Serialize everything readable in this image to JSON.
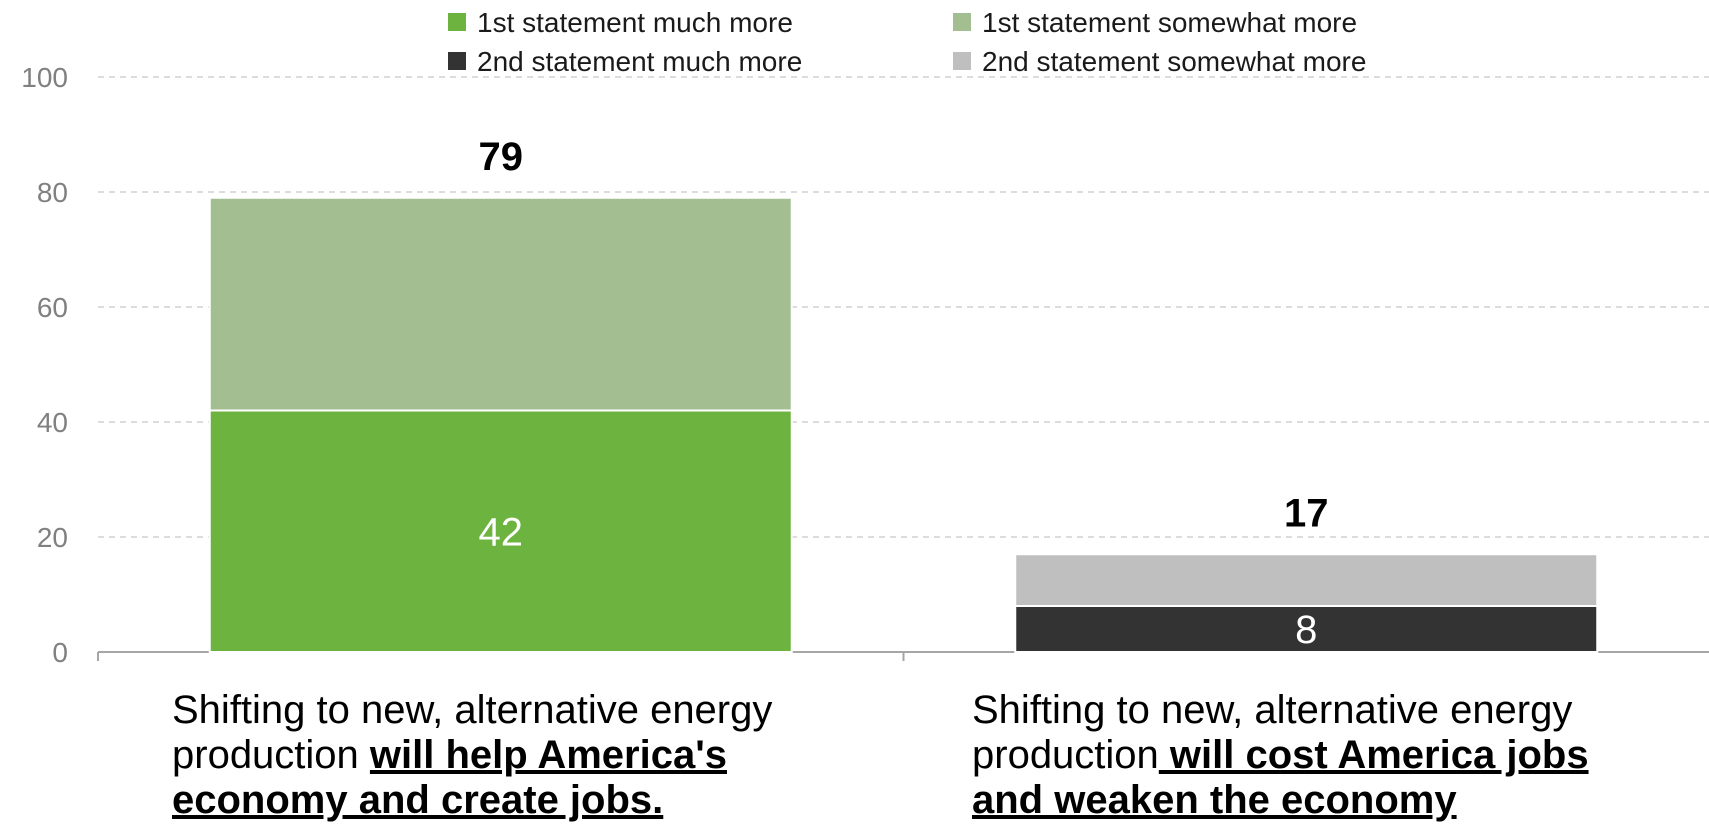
{
  "chart_data": {
    "type": "bar",
    "stacked": true,
    "ylim": [
      0,
      100
    ],
    "yticks": [
      0,
      20,
      40,
      60,
      80,
      100
    ],
    "grid": true,
    "legend_position": "top",
    "categories": [
      {
        "prefix": "Shifting to new, alternative energy production ",
        "emphasis": "will help America's economy and create jobs."
      },
      {
        "prefix": "Shifting to new, alternative energy production",
        "emphasis": " will cost America jobs and weaken the economy"
      }
    ],
    "series": [
      {
        "name": "1st statement much more",
        "color": "#6db33f",
        "values": [
          42,
          0
        ]
      },
      {
        "name": "1st statement somewhat more",
        "color": "#a3bf92",
        "values": [
          37,
          0
        ]
      },
      {
        "name": "2nd statement much more",
        "color": "#333333",
        "values": [
          0,
          8
        ]
      },
      {
        "name": "2nd statement somewhat more",
        "color": "#bfbfbf",
        "values": [
          0,
          9
        ]
      }
    ],
    "totals": [
      79,
      17
    ],
    "inner_labels": [
      42,
      8
    ]
  }
}
